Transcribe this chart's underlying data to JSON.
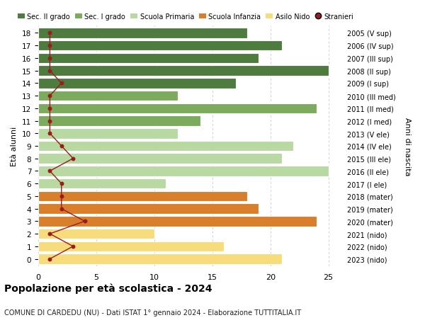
{
  "ages": [
    18,
    17,
    16,
    15,
    14,
    13,
    12,
    11,
    10,
    9,
    8,
    7,
    6,
    5,
    4,
    3,
    2,
    1,
    0
  ],
  "bar_values": [
    18,
    21,
    19,
    25,
    17,
    12,
    24,
    14,
    12,
    22,
    21,
    25,
    11,
    18,
    19,
    24,
    10,
    16,
    21
  ],
  "stranieri": [
    1,
    1,
    1,
    1,
    2,
    1,
    1,
    1,
    1,
    2,
    3,
    1,
    2,
    2,
    2,
    4,
    1,
    3,
    1
  ],
  "right_labels": [
    "2005 (V sup)",
    "2006 (IV sup)",
    "2007 (III sup)",
    "2008 (II sup)",
    "2009 (I sup)",
    "2010 (III med)",
    "2011 (II med)",
    "2012 (I med)",
    "2013 (V ele)",
    "2014 (IV ele)",
    "2015 (III ele)",
    "2016 (II ele)",
    "2017 (I ele)",
    "2018 (mater)",
    "2019 (mater)",
    "2020 (mater)",
    "2021 (nido)",
    "2022 (nido)",
    "2023 (nido)"
  ],
  "bar_colors": [
    "#4e7c3f",
    "#4e7c3f",
    "#4e7c3f",
    "#4e7c3f",
    "#4e7c3f",
    "#7dab5e",
    "#7dab5e",
    "#7dab5e",
    "#b8d9a2",
    "#b8d9a2",
    "#b8d9a2",
    "#b8d9a2",
    "#b8d9a2",
    "#d97f2c",
    "#d97f2c",
    "#d97f2c",
    "#f7dc7c",
    "#f7dc7c",
    "#f7dc7c"
  ],
  "legend_labels": [
    "Sec. II grado",
    "Sec. I grado",
    "Scuola Primaria",
    "Scuola Infanzia",
    "Asilo Nido",
    "Stranieri"
  ],
  "legend_colors": [
    "#4e7c3f",
    "#7dab5e",
    "#b8d9a2",
    "#d97f2c",
    "#f7dc7c",
    "#9b1c1c"
  ],
  "title": "Popolazione per età scolastica - 2024",
  "subtitle": "COMUNE DI CARDEDU (NU) - Dati ISTAT 1° gennaio 2024 - Elaborazione TUTTITALIA.IT",
  "anni_label": "Anni di nascita",
  "ylabel": "Età alunni",
  "xlim": [
    0,
    26
  ],
  "xticks": [
    0,
    5,
    10,
    15,
    20,
    25
  ],
  "stranieri_color": "#9b1c1c",
  "grid_color": "#cccccc",
  "bar_height": 0.82
}
